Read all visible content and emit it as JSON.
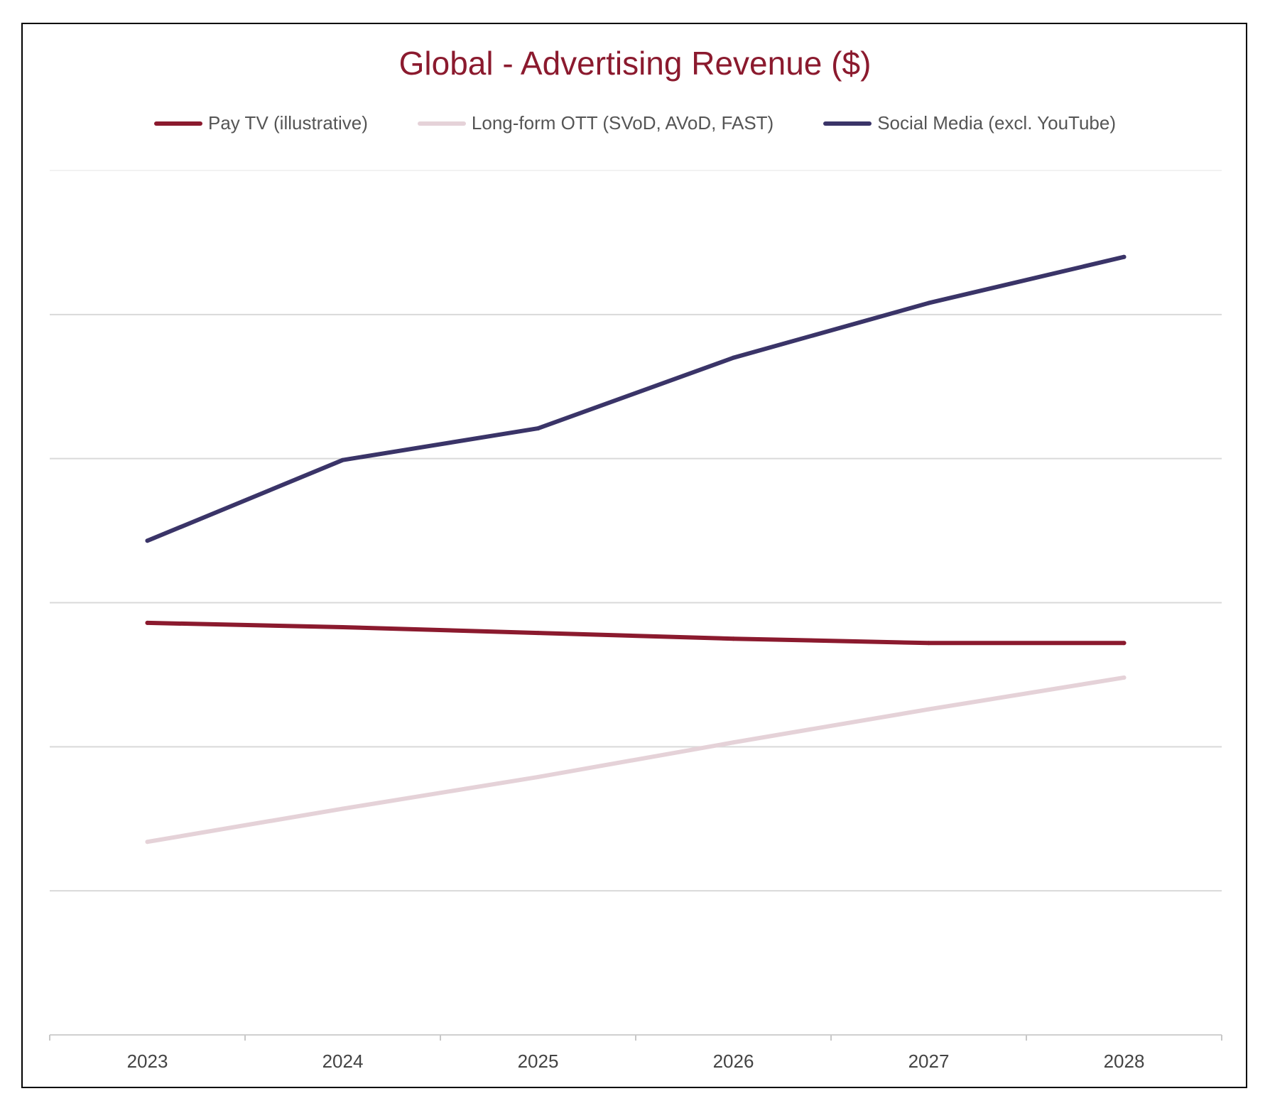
{
  "chart_data": {
    "type": "line",
    "title": "Global - Advertising Revenue ($)",
    "categories": [
      "2023",
      "2024",
      "2025",
      "2026",
      "2027",
      "2028"
    ],
    "xlabel": "",
    "ylabel": "",
    "ylim": [
      0,
      6
    ],
    "grid": true,
    "y_tick_labels_shown": false,
    "legend_position": "top",
    "series": [
      {
        "name": "Pay TV (illustrative)",
        "color": "#8b1a2e",
        "values": [
          2.86,
          2.83,
          2.79,
          2.75,
          2.72,
          2.72
        ]
      },
      {
        "name": "Long-form OTT (SVoD, AVoD, FAST)",
        "color": "#e5d2d8",
        "values": [
          1.34,
          1.57,
          1.79,
          2.03,
          2.26,
          2.48
        ]
      },
      {
        "name": "Social Media (excl. YouTube)",
        "color": "#3a3468",
        "values": [
          3.43,
          3.99,
          4.21,
          4.7,
          5.08,
          5.4
        ]
      }
    ]
  }
}
